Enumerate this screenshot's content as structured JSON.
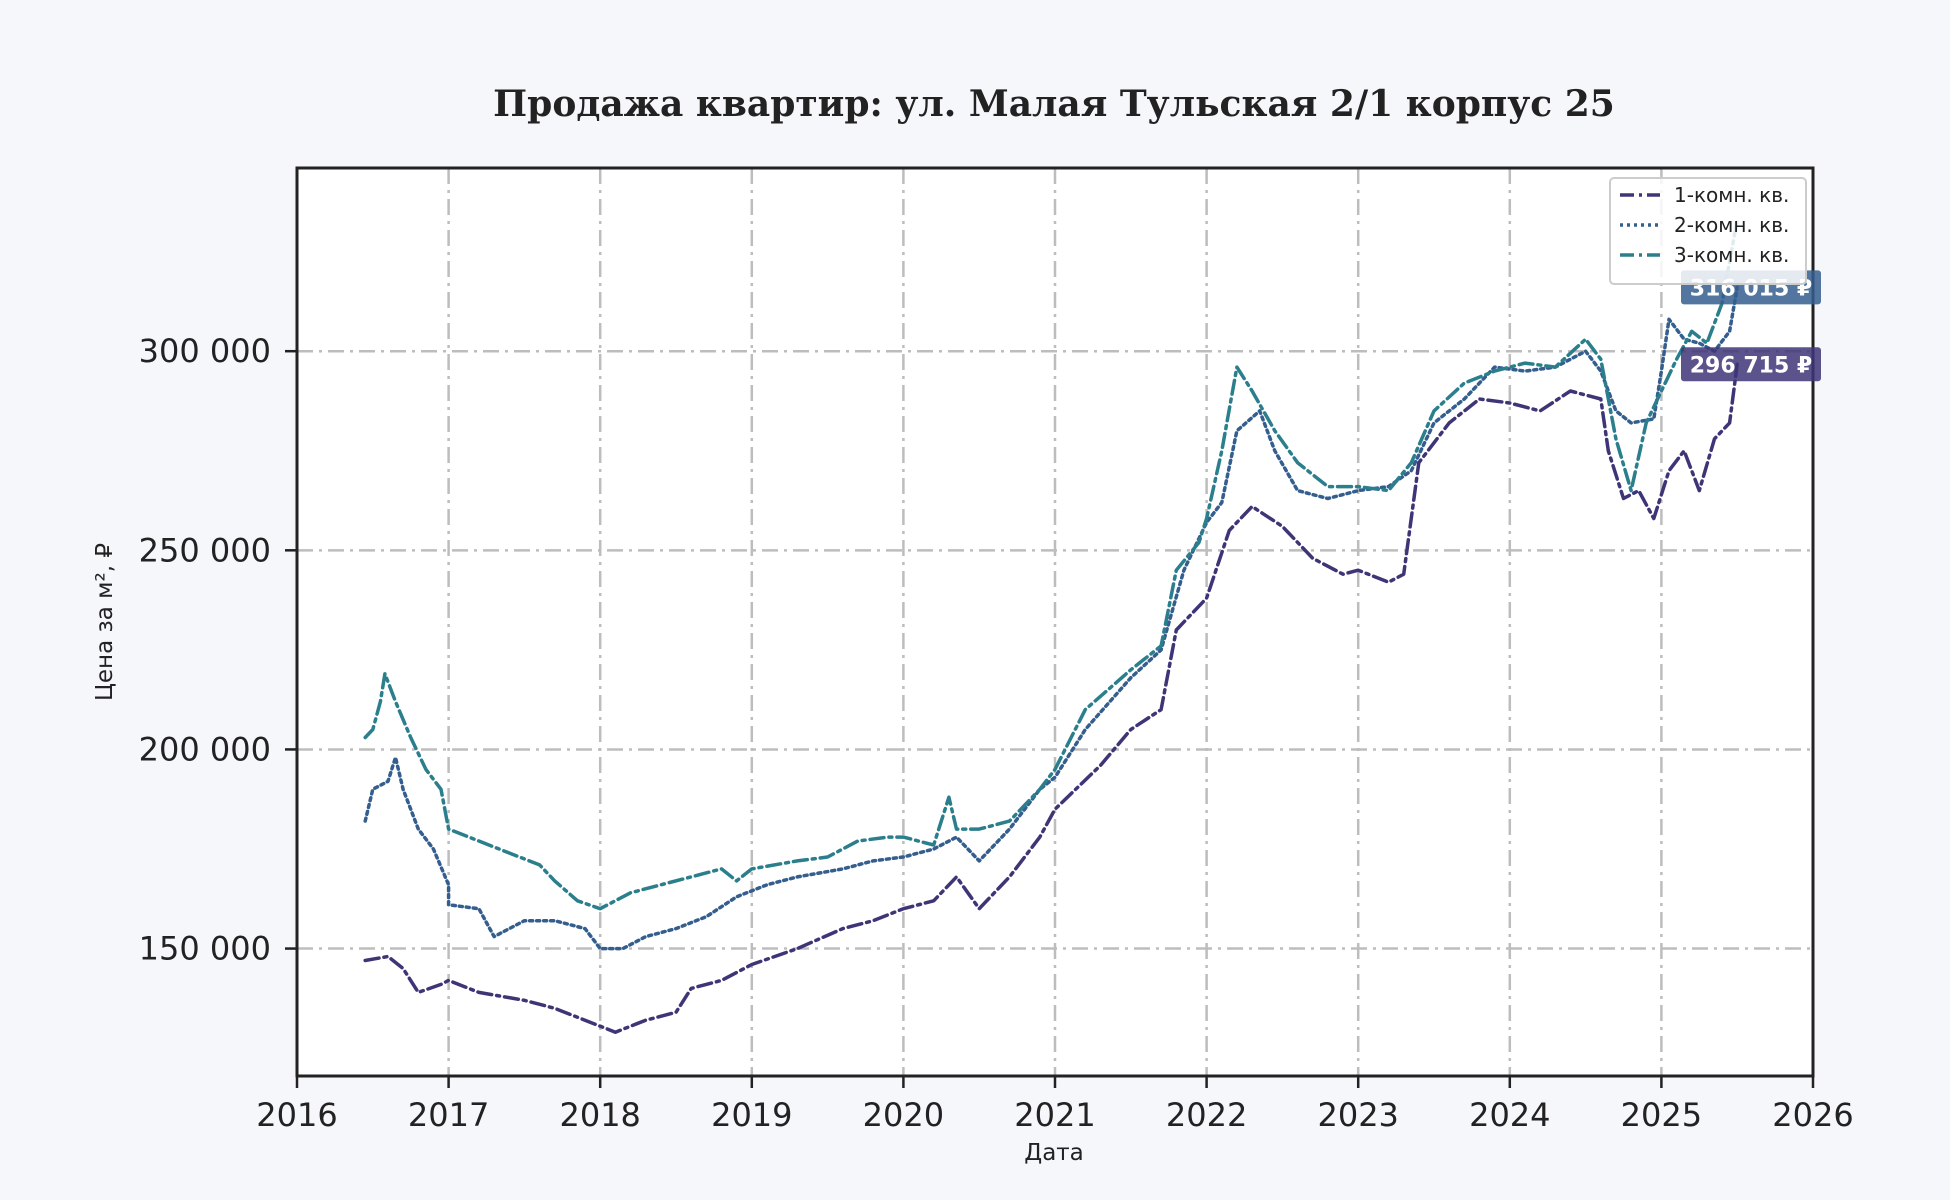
{
  "chart_data": {
    "type": "line",
    "title": "Продажа квартир: ул. Малая Тульская 2/1 корпус 25",
    "xlabel": "Дата",
    "ylabel": "Цена за м², ₽",
    "xlim": [
      2016.0,
      2026.0
    ],
    "ylim": [
      118000,
      346000
    ],
    "x_ticks": [
      2016,
      2017,
      2018,
      2019,
      2020,
      2021,
      2022,
      2023,
      2024,
      2025,
      2026
    ],
    "x_tick_labels": [
      "2016",
      "2017",
      "2018",
      "2019",
      "2020",
      "2021",
      "2022",
      "2023",
      "2024",
      "2025",
      "2026"
    ],
    "y_ticks": [
      150000,
      200000,
      250000,
      300000
    ],
    "y_tick_labels": [
      "150 000",
      "200 000",
      "250 000",
      "300 000"
    ],
    "grid": true,
    "legend_position": "top-right",
    "series": [
      {
        "name": "1-комн. кв.",
        "color": "#3e3577",
        "dash": "dashdot",
        "points": [
          [
            2016.45,
            147000
          ],
          [
            2016.6,
            148000
          ],
          [
            2016.7,
            145000
          ],
          [
            2016.8,
            139000
          ],
          [
            2016.95,
            141000
          ],
          [
            2017.0,
            142000
          ],
          [
            2017.2,
            139000
          ],
          [
            2017.5,
            137000
          ],
          [
            2017.7,
            135000
          ],
          [
            2017.9,
            132000
          ],
          [
            2018.1,
            129000
          ],
          [
            2018.3,
            132000
          ],
          [
            2018.5,
            134000
          ],
          [
            2018.6,
            140000
          ],
          [
            2018.8,
            142000
          ],
          [
            2019.0,
            146000
          ],
          [
            2019.3,
            150000
          ],
          [
            2019.6,
            155000
          ],
          [
            2019.8,
            157000
          ],
          [
            2020.0,
            160000
          ],
          [
            2020.2,
            162000
          ],
          [
            2020.35,
            168000
          ],
          [
            2020.5,
            160000
          ],
          [
            2020.7,
            168000
          ],
          [
            2020.9,
            178000
          ],
          [
            2021.0,
            185000
          ],
          [
            2021.3,
            196000
          ],
          [
            2021.5,
            205000
          ],
          [
            2021.7,
            210000
          ],
          [
            2021.8,
            230000
          ],
          [
            2022.0,
            238000
          ],
          [
            2022.15,
            255000
          ],
          [
            2022.3,
            261000
          ],
          [
            2022.5,
            256000
          ],
          [
            2022.7,
            248000
          ],
          [
            2022.9,
            244000
          ],
          [
            2023.0,
            245000
          ],
          [
            2023.2,
            242000
          ],
          [
            2023.3,
            244000
          ],
          [
            2023.4,
            272000
          ],
          [
            2023.6,
            282000
          ],
          [
            2023.8,
            288000
          ],
          [
            2024.0,
            287000
          ],
          [
            2024.2,
            285000
          ],
          [
            2024.4,
            290000
          ],
          [
            2024.6,
            288000
          ],
          [
            2024.65,
            275000
          ],
          [
            2024.75,
            263000
          ],
          [
            2024.85,
            265000
          ],
          [
            2024.95,
            258000
          ],
          [
            2025.05,
            270000
          ],
          [
            2025.15,
            275000
          ],
          [
            2025.25,
            265000
          ],
          [
            2025.35,
            278000
          ],
          [
            2025.45,
            282000
          ],
          [
            2025.5,
            296715
          ]
        ],
        "end_label": "296 715 ₽"
      },
      {
        "name": "2-комн. кв.",
        "color": "#345e8e",
        "dash": "dotted",
        "points": [
          [
            2016.45,
            182000
          ],
          [
            2016.5,
            190000
          ],
          [
            2016.6,
            192000
          ],
          [
            2016.65,
            198000
          ],
          [
            2016.7,
            190000
          ],
          [
            2016.8,
            180000
          ],
          [
            2016.9,
            175000
          ],
          [
            2017.0,
            166000
          ],
          [
            2017.0,
            161000
          ],
          [
            2017.2,
            160000
          ],
          [
            2017.3,
            153000
          ],
          [
            2017.5,
            157000
          ],
          [
            2017.7,
            157000
          ],
          [
            2017.9,
            155000
          ],
          [
            2018.0,
            150000
          ],
          [
            2018.15,
            150000
          ],
          [
            2018.3,
            153000
          ],
          [
            2018.5,
            155000
          ],
          [
            2018.7,
            158000
          ],
          [
            2018.9,
            163000
          ],
          [
            2019.1,
            166000
          ],
          [
            2019.3,
            168000
          ],
          [
            2019.6,
            170000
          ],
          [
            2019.8,
            172000
          ],
          [
            2020.0,
            173000
          ],
          [
            2020.2,
            175000
          ],
          [
            2020.35,
            178000
          ],
          [
            2020.5,
            172000
          ],
          [
            2020.7,
            180000
          ],
          [
            2020.9,
            190000
          ],
          [
            2021.0,
            193000
          ],
          [
            2021.2,
            205000
          ],
          [
            2021.5,
            218000
          ],
          [
            2021.7,
            225000
          ],
          [
            2021.85,
            245000
          ],
          [
            2022.0,
            257000
          ],
          [
            2022.1,
            262000
          ],
          [
            2022.2,
            280000
          ],
          [
            2022.35,
            285000
          ],
          [
            2022.45,
            275000
          ],
          [
            2022.6,
            265000
          ],
          [
            2022.8,
            263000
          ],
          [
            2023.0,
            265000
          ],
          [
            2023.2,
            266000
          ],
          [
            2023.35,
            270000
          ],
          [
            2023.5,
            282000
          ],
          [
            2023.7,
            288000
          ],
          [
            2023.9,
            296000
          ],
          [
            2024.1,
            295000
          ],
          [
            2024.3,
            296000
          ],
          [
            2024.5,
            300000
          ],
          [
            2024.6,
            295000
          ],
          [
            2024.7,
            285000
          ],
          [
            2024.8,
            282000
          ],
          [
            2024.95,
            283000
          ],
          [
            2025.0,
            295000
          ],
          [
            2025.05,
            308000
          ],
          [
            2025.15,
            303000
          ],
          [
            2025.25,
            302000
          ],
          [
            2025.35,
            300000
          ],
          [
            2025.45,
            305000
          ],
          [
            2025.5,
            316015
          ]
        ],
        "end_label": "316 015 ₽"
      },
      {
        "name": "3-комн. кв.",
        "color": "#2b7f8d",
        "dash": "dashdot",
        "points": [
          [
            2016.45,
            203000
          ],
          [
            2016.5,
            205000
          ],
          [
            2016.55,
            212000
          ],
          [
            2016.58,
            219000
          ],
          [
            2016.65,
            212000
          ],
          [
            2016.75,
            203000
          ],
          [
            2016.85,
            195000
          ],
          [
            2016.95,
            190000
          ],
          [
            2017.0,
            180000
          ],
          [
            2017.2,
            177000
          ],
          [
            2017.4,
            174000
          ],
          [
            2017.6,
            171000
          ],
          [
            2017.7,
            167000
          ],
          [
            2017.85,
            162000
          ],
          [
            2018.0,
            160000
          ],
          [
            2018.2,
            164000
          ],
          [
            2018.4,
            166000
          ],
          [
            2018.6,
            168000
          ],
          [
            2018.8,
            170000
          ],
          [
            2018.9,
            167000
          ],
          [
            2019.0,
            170000
          ],
          [
            2019.3,
            172000
          ],
          [
            2019.5,
            173000
          ],
          [
            2019.7,
            177000
          ],
          [
            2019.9,
            178000
          ],
          [
            2020.0,
            178000
          ],
          [
            2020.2,
            176000
          ],
          [
            2020.3,
            188000
          ],
          [
            2020.35,
            180000
          ],
          [
            2020.5,
            180000
          ],
          [
            2020.7,
            182000
          ],
          [
            2020.9,
            190000
          ],
          [
            2021.0,
            195000
          ],
          [
            2021.2,
            210000
          ],
          [
            2021.5,
            220000
          ],
          [
            2021.7,
            226000
          ],
          [
            2021.8,
            245000
          ],
          [
            2021.95,
            252000
          ],
          [
            2022.0,
            258000
          ],
          [
            2022.1,
            275000
          ],
          [
            2022.2,
            296000
          ],
          [
            2022.3,
            290000
          ],
          [
            2022.45,
            280000
          ],
          [
            2022.6,
            272000
          ],
          [
            2022.8,
            266000
          ],
          [
            2023.0,
            266000
          ],
          [
            2023.2,
            265000
          ],
          [
            2023.35,
            272000
          ],
          [
            2023.5,
            285000
          ],
          [
            2023.7,
            292000
          ],
          [
            2023.9,
            295000
          ],
          [
            2024.1,
            297000
          ],
          [
            2024.3,
            296000
          ],
          [
            2024.5,
            303000
          ],
          [
            2024.6,
            298000
          ],
          [
            2024.7,
            278000
          ],
          [
            2024.8,
            265000
          ],
          [
            2024.9,
            282000
          ],
          [
            2025.0,
            290000
          ],
          [
            2025.1,
            298000
          ],
          [
            2025.2,
            305000
          ],
          [
            2025.3,
            302000
          ],
          [
            2025.4,
            312000
          ],
          [
            2025.5,
            333000
          ]
        ],
        "end_label": ""
      }
    ]
  }
}
